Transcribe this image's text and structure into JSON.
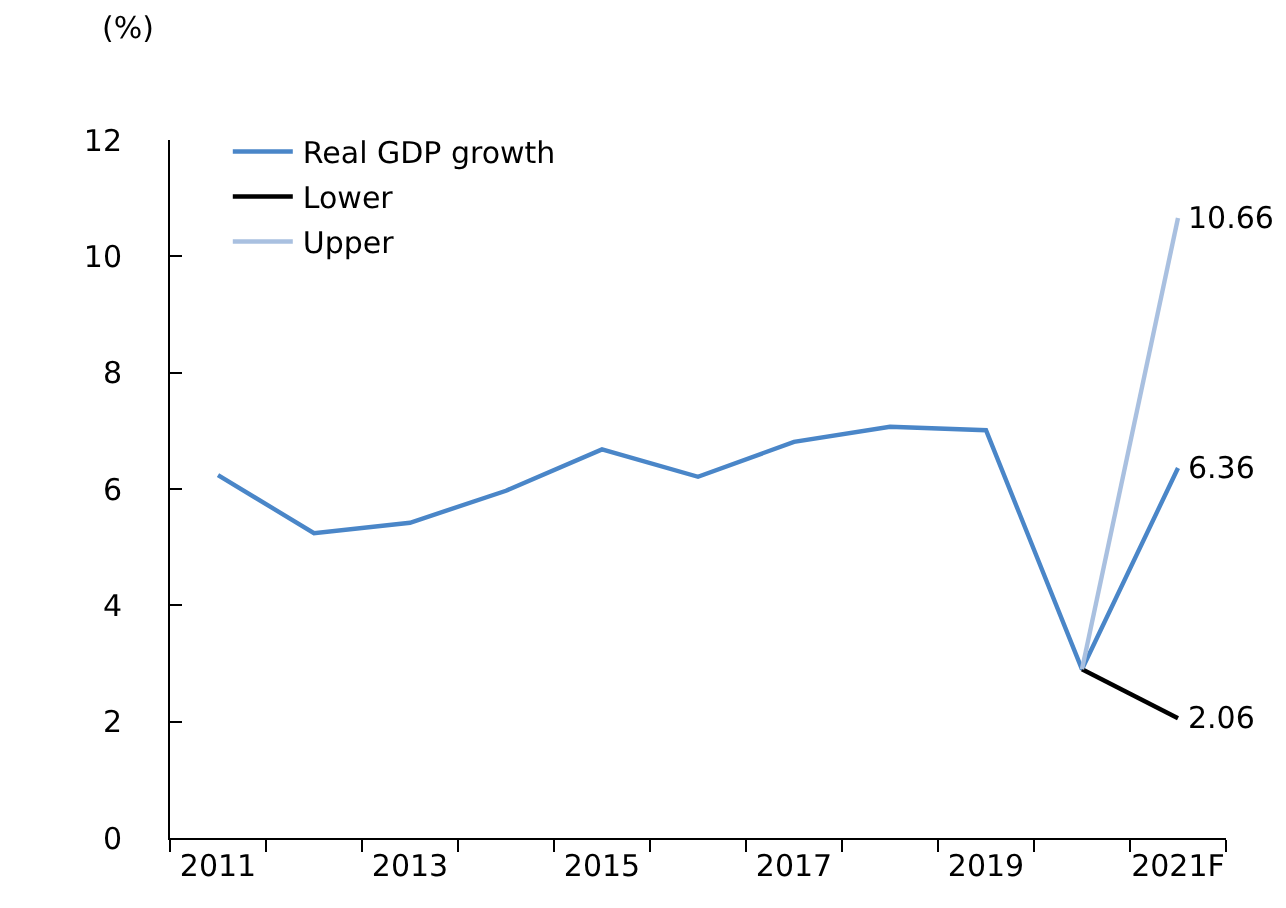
{
  "chart_data": {
    "type": "line",
    "ylabel": "(%)",
    "categories": [
      "2011",
      null,
      "2013",
      null,
      "2015",
      null,
      "2017",
      null,
      "2019",
      null,
      "2021F"
    ],
    "series": [
      {
        "name": "Real GDP growth",
        "color": "#4a86c8",
        "values": [
          6.24,
          5.24,
          5.42,
          5.97,
          6.68,
          6.21,
          6.81,
          7.07,
          7.01,
          2.9,
          6.36
        ],
        "value_labels": [
          null,
          null,
          null,
          null,
          null,
          null,
          null,
          null,
          null,
          null,
          "6.36"
        ]
      },
      {
        "name": "Lower",
        "color": "#000000",
        "values": [
          null,
          null,
          null,
          null,
          null,
          null,
          null,
          null,
          null,
          2.9,
          2.06
        ],
        "value_labels": [
          null,
          null,
          null,
          null,
          null,
          null,
          null,
          null,
          null,
          null,
          "2.06"
        ]
      },
      {
        "name": "Upper",
        "color": "#a9c0e0",
        "values": [
          null,
          null,
          null,
          null,
          null,
          null,
          null,
          null,
          null,
          2.9,
          10.66
        ],
        "value_labels": [
          null,
          null,
          null,
          null,
          null,
          null,
          null,
          null,
          null,
          null,
          "10.66"
        ]
      }
    ],
    "ylim": [
      0,
      12
    ],
    "yticks": [
      0,
      2,
      4,
      6,
      8,
      10,
      12
    ],
    "legend": "top left",
    "marker": "none",
    "line_style": "solid"
  }
}
